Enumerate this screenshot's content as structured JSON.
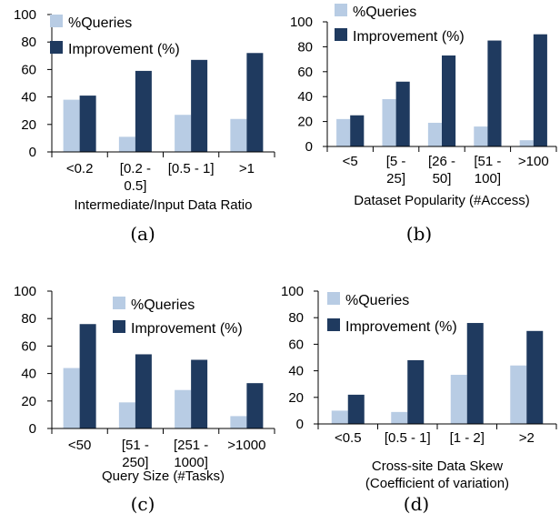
{
  "colors": {
    "queries": "#b8cce4",
    "improvement": "#1f3a5f",
    "axis": "#000000"
  },
  "chart_data": [
    {
      "type": "bar",
      "caption": "(a)",
      "xlabel": [
        "Intermediate/Input Data Ratio"
      ],
      "categories": [
        [
          "<0.2"
        ],
        [
          "[0.2 -",
          "0.5]"
        ],
        [
          "[0.5 - 1]"
        ],
        [
          ">1"
        ]
      ],
      "series": [
        {
          "name": "%Queries",
          "values": [
            38,
            11,
            27,
            24
          ]
        },
        {
          "name": "Improvement (%)",
          "values": [
            41,
            59,
            67,
            72
          ]
        }
      ],
      "ylim": [
        0,
        100
      ],
      "yticks": [
        "0",
        "20",
        "40",
        "60",
        "80",
        "100"
      ],
      "legend": "top-left"
    },
    {
      "type": "bar",
      "caption": "(b)",
      "xlabel": [
        "Dataset Popularity (#Access)"
      ],
      "categories": [
        [
          "<5"
        ],
        [
          "[5 -",
          "25]"
        ],
        [
          "[26 -",
          "50]"
        ],
        [
          "[51 -",
          "100]"
        ],
        [
          ">100"
        ]
      ],
      "series": [
        {
          "name": "%Queries",
          "values": [
            22,
            38,
            19,
            16,
            5
          ]
        },
        {
          "name": "Improvement (%)",
          "values": [
            25,
            52,
            73,
            85,
            90
          ]
        }
      ],
      "ylim": [
        0,
        100
      ],
      "yticks": [
        "0",
        "20",
        "40",
        "60",
        "80",
        "100"
      ],
      "legend": "top-left"
    },
    {
      "type": "bar",
      "caption": "(c)",
      "xlabel": [
        "Query Size (#Tasks)"
      ],
      "categories": [
        [
          "<50"
        ],
        [
          "[51 -",
          "250]"
        ],
        [
          "[251 -",
          "1000]"
        ],
        [
          ">1000"
        ]
      ],
      "series": [
        {
          "name": "%Queries",
          "values": [
            44,
            19,
            28,
            9
          ]
        },
        {
          "name": "Improvement (%)",
          "values": [
            76,
            54,
            50,
            33
          ]
        }
      ],
      "ylim": [
        0,
        100
      ],
      "yticks": [
        "0",
        "20",
        "40",
        "60",
        "80",
        "100"
      ],
      "legend": "top-right"
    },
    {
      "type": "bar",
      "caption": "(d)",
      "xlabel": [
        "Cross-site Data Skew",
        "(Coefficient of variation)"
      ],
      "categories": [
        [
          "<0.5"
        ],
        [
          "[0.5 - 1]"
        ],
        [
          "[1 - 2]"
        ],
        [
          ">2"
        ]
      ],
      "series": [
        {
          "name": "%Queries",
          "values": [
            10,
            9,
            37,
            44
          ]
        },
        {
          "name": "Improvement (%)",
          "values": [
            22,
            48,
            76,
            70
          ]
        }
      ],
      "ylim": [
        0,
        100
      ],
      "yticks": [
        "0",
        "20",
        "40",
        "60",
        "80",
        "100"
      ],
      "legend": "top-left"
    }
  ]
}
